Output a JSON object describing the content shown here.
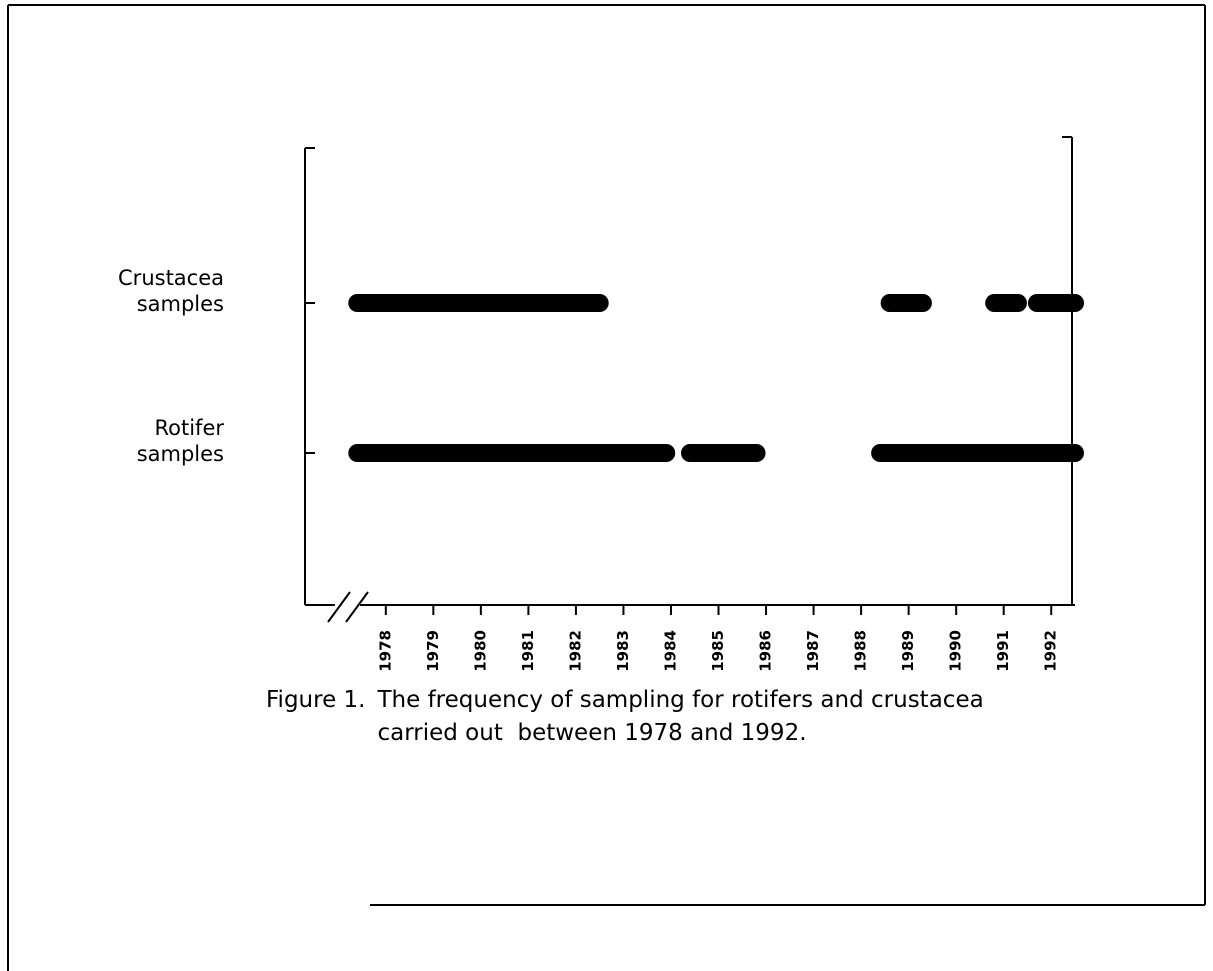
{
  "chart_data": {
    "type": "timeline",
    "caption_label": "Figure 1.",
    "caption": "The frequency of sampling for rotifers and crustacea carried out  between 1978 and 1992.",
    "categories": [
      "Crustacea samples",
      "Rotifer samples"
    ],
    "series": [
      {
        "name": "Crustacea samples",
        "color": "#000000",
        "segments": [
          [
            1977.4,
            1982.5
          ],
          [
            1988.6,
            1989.3
          ],
          [
            1990.8,
            1991.3
          ],
          [
            1991.7,
            1992.5
          ]
        ]
      },
      {
        "name": "Rotifer samples",
        "color": "#000000",
        "segments": [
          [
            1977.4,
            1983.9
          ],
          [
            1984.4,
            1985.8
          ],
          [
            1988.4,
            1992.5
          ]
        ]
      }
    ],
    "xlim": [
      1976.3,
      1992.5
    ],
    "xticks": [
      1978,
      1979,
      1980,
      1981,
      1982,
      1983,
      1984,
      1985,
      1986,
      1987,
      1988,
      1989,
      1990,
      1991,
      1992
    ]
  }
}
